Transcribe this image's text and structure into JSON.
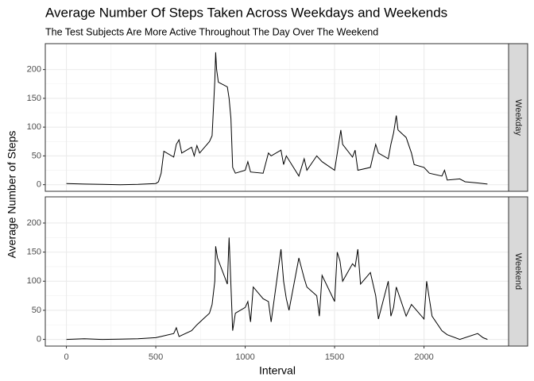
{
  "chart_data": {
    "type": "line",
    "title": "Average Number Of Steps Taken Across Weekdays and Weekends",
    "subtitle": "The Test Subjects Are More Active Throughout The Day Over The Weekend",
    "xlabel": "Interval",
    "ylabel": "Average Number of Steps",
    "xlim": [
      -118,
      2473
    ],
    "xticks": [
      0,
      500,
      1000,
      1500,
      2000
    ],
    "ylim": [
      -11.5,
      245
    ],
    "yticks": [
      0,
      50,
      100,
      150,
      200
    ],
    "grid": true,
    "color": "#000000",
    "panels": [
      {
        "name": "Weekday",
        "x": [
          0,
          100,
          200,
          300,
          400,
          500,
          515,
          530,
          545,
          600,
          615,
          630,
          645,
          700,
          715,
          730,
          745,
          800,
          815,
          830,
          835,
          840,
          850,
          900,
          910,
          920,
          930,
          945,
          1000,
          1015,
          1030,
          1100,
          1130,
          1145,
          1200,
          1215,
          1230,
          1300,
          1330,
          1345,
          1400,
          1430,
          1500,
          1535,
          1545,
          1600,
          1615,
          1630,
          1700,
          1730,
          1745,
          1800,
          1815,
          1830,
          1845,
          1855,
          1900,
          1930,
          1945,
          2000,
          2030,
          2100,
          2115,
          2130,
          2200,
          2230,
          2300,
          2355
        ],
        "values": [
          2,
          1,
          0.5,
          0,
          0.5,
          2,
          5,
          20,
          58,
          48,
          70,
          78,
          55,
          65,
          50,
          68,
          55,
          75,
          85,
          180,
          230,
          200,
          178,
          170,
          150,
          115,
          30,
          20,
          25,
          40,
          22,
          20,
          55,
          50,
          60,
          35,
          50,
          15,
          45,
          25,
          50,
          40,
          25,
          95,
          70,
          48,
          60,
          25,
          30,
          70,
          55,
          45,
          70,
          90,
          120,
          95,
          82,
          55,
          35,
          30,
          20,
          15,
          25,
          8,
          10,
          5,
          3,
          1
        ]
      },
      {
        "name": "Weekend",
        "x": [
          0,
          100,
          200,
          300,
          400,
          500,
          530,
          600,
          615,
          630,
          700,
          730,
          800,
          815,
          830,
          835,
          845,
          900,
          910,
          930,
          945,
          1000,
          1015,
          1030,
          1045,
          1100,
          1130,
          1145,
          1200,
          1215,
          1230,
          1245,
          1300,
          1330,
          1345,
          1400,
          1415,
          1430,
          1500,
          1515,
          1530,
          1545,
          1600,
          1615,
          1630,
          1645,
          1700,
          1730,
          1745,
          1800,
          1815,
          1830,
          1845,
          1900,
          1930,
          2000,
          2015,
          2030,
          2045,
          2100,
          2130,
          2200,
          2300,
          2330,
          2355
        ],
        "values": [
          0,
          1,
          0,
          0.5,
          1,
          3,
          5,
          10,
          20,
          5,
          15,
          25,
          45,
          60,
          100,
          160,
          140,
          95,
          175,
          15,
          45,
          55,
          65,
          30,
          90,
          70,
          65,
          30,
          155,
          100,
          70,
          50,
          140,
          105,
          90,
          75,
          40,
          110,
          65,
          150,
          135,
          100,
          130,
          125,
          155,
          95,
          115,
          75,
          35,
          100,
          40,
          55,
          90,
          40,
          60,
          35,
          100,
          70,
          40,
          15,
          8,
          0,
          10,
          3,
          0
        ]
      }
    ]
  }
}
